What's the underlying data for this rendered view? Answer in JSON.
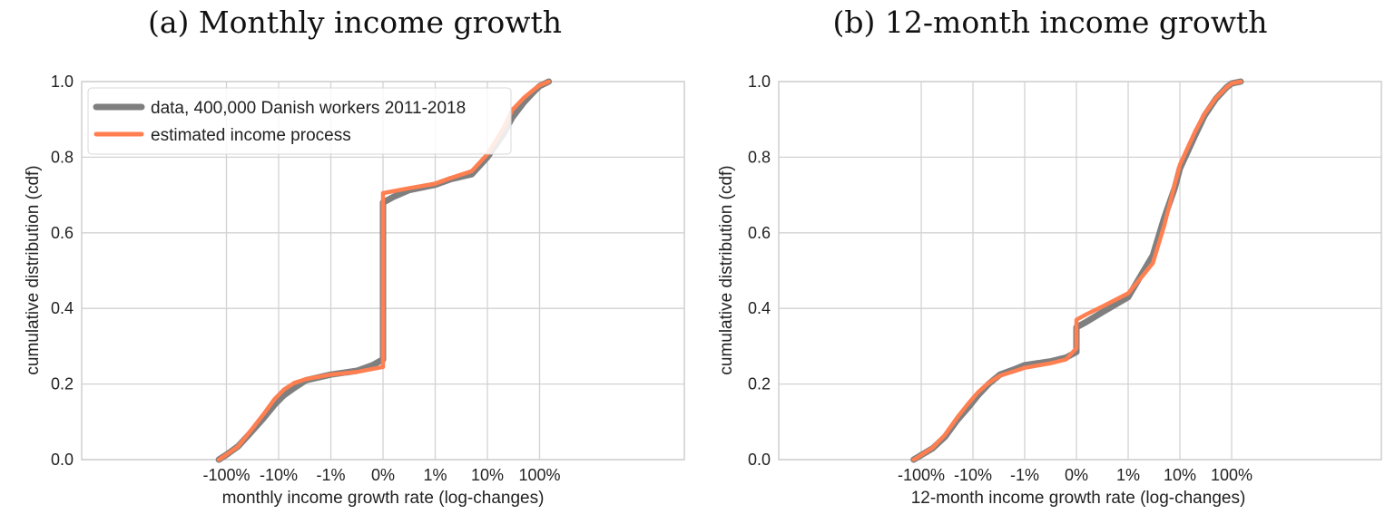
{
  "legend": {
    "entries": [
      {
        "label": "data, 400,000 Danish workers 2011-2018",
        "color": "#7f7f7f"
      },
      {
        "label": "estimated income process",
        "color": "#ff7f50"
      }
    ],
    "placement": "upper-left"
  },
  "chart_data": [
    {
      "type": "line",
      "title": "(a) Monthly income growth",
      "xlabel": "monthly income growth rate (log-changes)",
      "ylabel": "cumulative distribution (cdf)",
      "xscale": "symlog",
      "xticks": [
        {
          "label": "-100%",
          "value": -1.0
        },
        {
          "label": "-10%",
          "value": -0.1
        },
        {
          "label": "-1%",
          "value": -0.01
        },
        {
          "label": "0%",
          "value": 0
        },
        {
          "label": "1%",
          "value": 0.01
        },
        {
          "label": "10%",
          "value": 0.1
        },
        {
          "label": "100%",
          "value": 1.0
        }
      ],
      "yticks": [
        "0.0",
        "0.2",
        "0.4",
        "0.6",
        "0.8",
        "1.0"
      ],
      "ylim": [
        0,
        1
      ],
      "grid": true,
      "series": [
        {
          "name": "data, 400,000 Danish workers 2011-2018",
          "color": "#7f7f7f",
          "x": [
            -1.4,
            -1.0,
            -0.6,
            -0.35,
            -0.2,
            -0.12,
            -0.08,
            -0.05,
            -0.03,
            -0.01,
            -0.005,
            -0.002,
            0,
            0,
            0.002,
            0.005,
            0.01,
            0.02,
            0.05,
            0.1,
            0.2,
            0.3,
            0.5,
            0.8,
            1.0,
            1.5
          ],
          "y": [
            0.0,
            0.013,
            0.035,
            0.07,
            0.108,
            0.145,
            0.17,
            0.19,
            0.21,
            0.225,
            0.235,
            0.25,
            0.265,
            0.68,
            0.695,
            0.713,
            0.727,
            0.742,
            0.755,
            0.8,
            0.86,
            0.905,
            0.945,
            0.975,
            0.988,
            1.0
          ]
        },
        {
          "name": "estimated income process",
          "color": "#ff7f50",
          "x": [
            -1.4,
            -1.0,
            -0.6,
            -0.35,
            -0.2,
            -0.12,
            -0.08,
            -0.05,
            -0.03,
            -0.01,
            -0.005,
            -0.002,
            0,
            0,
            0.002,
            0.005,
            0.01,
            0.02,
            0.05,
            0.1,
            0.2,
            0.3,
            0.5,
            0.8,
            1.0,
            1.5
          ],
          "y": [
            0.0,
            0.013,
            0.035,
            0.075,
            0.118,
            0.16,
            0.185,
            0.203,
            0.213,
            0.225,
            0.232,
            0.24,
            0.245,
            0.705,
            0.71,
            0.718,
            0.73,
            0.745,
            0.763,
            0.808,
            0.875,
            0.925,
            0.957,
            0.98,
            0.99,
            1.0
          ]
        }
      ]
    },
    {
      "type": "line",
      "title": "(b) 12-month income growth",
      "xlabel": "12-month income growth rate (log-changes)",
      "ylabel": "cumulative distribution (cdf)",
      "xscale": "symlog",
      "xticks": [
        {
          "label": "-100%",
          "value": -1.0
        },
        {
          "label": "-10%",
          "value": -0.1
        },
        {
          "label": "-1%",
          "value": -0.01
        },
        {
          "label": "0%",
          "value": 0
        },
        {
          "label": "1%",
          "value": 0.01
        },
        {
          "label": "10%",
          "value": 0.1
        },
        {
          "label": "100%",
          "value": 1.0
        }
      ],
      "yticks": [
        "0.0",
        "0.2",
        "0.4",
        "0.6",
        "0.8",
        "1.0"
      ],
      "ylim": [
        0,
        1
      ],
      "grid": true,
      "series": [
        {
          "name": "data, 400,000 Danish workers 2011-2018",
          "color": "#7f7f7f",
          "x": [
            -1.4,
            -1.0,
            -0.6,
            -0.35,
            -0.2,
            -0.12,
            -0.08,
            -0.05,
            -0.03,
            -0.015,
            -0.01,
            -0.005,
            -0.002,
            0,
            0,
            0.002,
            0.005,
            0.01,
            0.02,
            0.03,
            0.05,
            0.08,
            0.1,
            0.2,
            0.3,
            0.5,
            0.8,
            1.0,
            1.5
          ],
          "y": [
            0.0,
            0.012,
            0.03,
            0.06,
            0.105,
            0.14,
            0.17,
            0.2,
            0.225,
            0.24,
            0.25,
            0.26,
            0.27,
            0.285,
            0.35,
            0.365,
            0.39,
            0.43,
            0.5,
            0.54,
            0.64,
            0.72,
            0.77,
            0.86,
            0.91,
            0.955,
            0.985,
            0.995,
            1.0
          ]
        },
        {
          "name": "estimated income process",
          "color": "#ff7f50",
          "x": [
            -1.4,
            -1.0,
            -0.6,
            -0.35,
            -0.2,
            -0.12,
            -0.08,
            -0.05,
            -0.03,
            -0.015,
            -0.01,
            -0.005,
            -0.002,
            0,
            0,
            0.002,
            0.005,
            0.01,
            0.02,
            0.03,
            0.05,
            0.08,
            0.1,
            0.2,
            0.3,
            0.5,
            0.8,
            1.0,
            1.5
          ],
          "y": [
            0.0,
            0.012,
            0.032,
            0.065,
            0.112,
            0.15,
            0.178,
            0.203,
            0.222,
            0.235,
            0.243,
            0.255,
            0.265,
            0.295,
            0.37,
            0.385,
            0.405,
            0.44,
            0.49,
            0.52,
            0.62,
            0.73,
            0.78,
            0.87,
            0.915,
            0.957,
            0.985,
            0.995,
            1.0
          ]
        }
      ]
    }
  ]
}
